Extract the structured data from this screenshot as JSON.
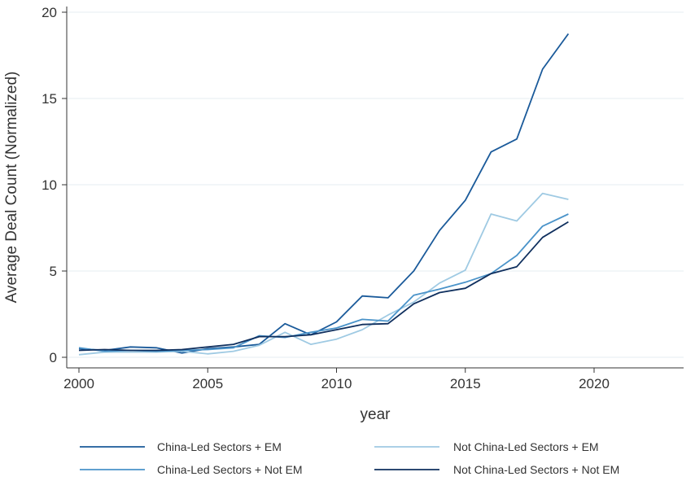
{
  "chart_data": {
    "type": "line",
    "title": "",
    "xlabel": "year",
    "ylabel": "Average Deal Count (Normalized)",
    "xlim": [
      2000,
      2020
    ],
    "ylim": [
      0,
      20
    ],
    "xticks": [
      2000,
      2005,
      2010,
      2015,
      2020
    ],
    "yticks": [
      0,
      5,
      10,
      15,
      20
    ],
    "grid": true,
    "legend_position": "bottom",
    "x": [
      2000,
      2001,
      2002,
      2003,
      2004,
      2005,
      2006,
      2007,
      2008,
      2009,
      2010,
      2011,
      2012,
      2013,
      2014,
      2015,
      2016,
      2017,
      2018,
      2019
    ],
    "series": [
      {
        "name": "China-Led Sectors + EM",
        "color": "#1a5a9a",
        "values": [
          0.5,
          0.4,
          0.6,
          0.55,
          0.25,
          0.5,
          0.6,
          0.75,
          1.95,
          1.3,
          2.05,
          3.55,
          3.45,
          5.0,
          7.35,
          9.1,
          11.9,
          12.65,
          16.7,
          18.75
        ]
      },
      {
        "name": "Not China-Led Sectors + EM",
        "color": "#9fcae3",
        "values": [
          0.15,
          0.3,
          0.3,
          0.3,
          0.35,
          0.2,
          0.35,
          0.7,
          1.45,
          0.75,
          1.05,
          1.6,
          2.45,
          3.2,
          4.3,
          5.05,
          8.3,
          7.9,
          9.5,
          9.15
        ]
      },
      {
        "name": "China-Led Sectors + Not EM",
        "color": "#4a93c9",
        "values": [
          0.55,
          0.35,
          0.4,
          0.35,
          0.4,
          0.45,
          0.55,
          1.25,
          1.15,
          1.45,
          1.7,
          2.2,
          2.1,
          3.6,
          3.95,
          4.35,
          4.85,
          5.9,
          7.6,
          8.3
        ]
      },
      {
        "name": "Not China-Led Sectors + Not EM",
        "color": "#0f2f5e",
        "values": [
          0.4,
          0.45,
          0.4,
          0.4,
          0.45,
          0.6,
          0.75,
          1.2,
          1.2,
          1.3,
          1.6,
          1.9,
          1.95,
          3.1,
          3.75,
          4.0,
          4.85,
          5.25,
          6.95,
          7.85
        ]
      }
    ]
  }
}
